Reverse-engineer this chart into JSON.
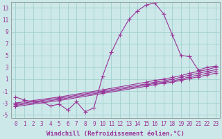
{
  "xlabel": "Windchill (Refroidissement éolien,°C)",
  "background_color": "#cce8e8",
  "line_color": "#993399",
  "grid_color": "#99cccc",
  "xlim": [
    -0.5,
    23.5
  ],
  "ylim": [
    -5.5,
    14.0
  ],
  "yticks": [
    -5,
    -3,
    -1,
    1,
    3,
    5,
    7,
    9,
    11,
    13
  ],
  "xticks": [
    0,
    1,
    2,
    3,
    4,
    5,
    6,
    7,
    8,
    9,
    10,
    11,
    12,
    13,
    14,
    15,
    16,
    17,
    18,
    19,
    20,
    21,
    22,
    23
  ],
  "curves": {
    "main": {
      "x": [
        0,
        1,
        2,
        3,
        4,
        5,
        6,
        7,
        8,
        9,
        10,
        11,
        12,
        13,
        14,
        15,
        16,
        17,
        18,
        19,
        20,
        21,
        22,
        23
      ],
      "y": [
        -2.0,
        -2.5,
        -2.8,
        -2.8,
        -3.5,
        -3.2,
        -4.2,
        -2.8,
        -4.5,
        -3.8,
        1.5,
        5.5,
        8.5,
        11.0,
        12.5,
        13.5,
        13.8,
        12.0,
        8.5,
        5.0,
        4.8,
        2.5,
        3.0,
        3.2
      ]
    },
    "diag1": {
      "x": [
        0,
        5,
        10,
        15,
        16,
        17,
        18,
        19,
        20,
        21,
        22,
        23
      ],
      "y": [
        -3.0,
        -2.0,
        -0.8,
        0.5,
        0.8,
        1.0,
        1.3,
        1.6,
        2.0,
        2.3,
        2.6,
        3.0
      ]
    },
    "diag2": {
      "x": [
        0,
        5,
        10,
        15,
        16,
        17,
        18,
        19,
        20,
        21,
        22,
        23
      ],
      "y": [
        -3.2,
        -2.2,
        -1.0,
        0.2,
        0.5,
        0.7,
        1.0,
        1.3,
        1.7,
        2.0,
        2.3,
        2.6
      ]
    },
    "diag3": {
      "x": [
        0,
        5,
        10,
        15,
        16,
        17,
        18,
        19,
        20,
        21,
        22,
        23
      ],
      "y": [
        -3.4,
        -2.4,
        -1.2,
        0.0,
        0.3,
        0.5,
        0.7,
        1.0,
        1.4,
        1.7,
        2.0,
        2.3
      ]
    },
    "diag4": {
      "x": [
        0,
        5,
        10,
        15,
        16,
        17,
        18,
        19,
        20,
        21,
        22,
        23
      ],
      "y": [
        -3.6,
        -2.6,
        -1.4,
        -0.2,
        0.1,
        0.3,
        0.5,
        0.8,
        1.1,
        1.4,
        1.7,
        2.0
      ]
    }
  },
  "marker": "+",
  "markersize": 4,
  "linewidth": 0.8,
  "tick_fontsize": 5.5,
  "label_fontsize": 6.5
}
